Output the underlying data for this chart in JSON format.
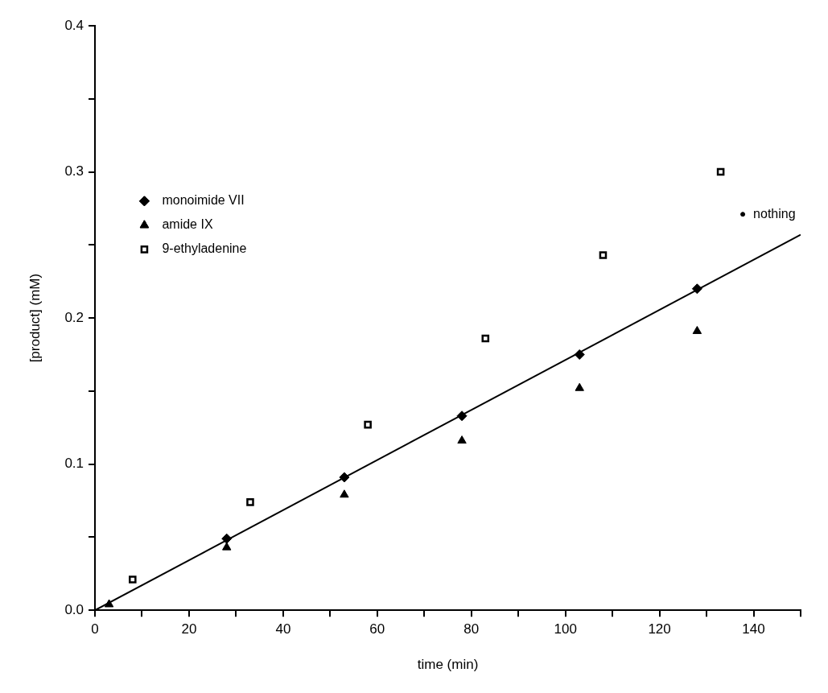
{
  "chart_data": {
    "type": "scatter",
    "xlabel": "time (min)",
    "ylabel": "[product] (mM)",
    "xlim": [
      0,
      150
    ],
    "ylim": [
      0,
      0.4
    ],
    "xticks": [
      0,
      {
        "value": 10,
        "label": null
      },
      20,
      {
        "value": 30,
        "label": null
      },
      40,
      {
        "value": 50,
        "label": null
      },
      60,
      {
        "value": 70,
        "label": null
      },
      80,
      {
        "value": 90,
        "label": null
      },
      100,
      {
        "value": 110,
        "label": null
      },
      120,
      {
        "value": 130,
        "label": null
      },
      140,
      {
        "value": 150,
        "label": null
      }
    ],
    "yticks": [
      {
        "value": 0,
        "label": "0.0"
      },
      {
        "value": 0.05,
        "label": null
      },
      0.1,
      {
        "value": 0.15,
        "label": null
      },
      0.2,
      {
        "value": 0.25,
        "label": null
      },
      0.3,
      {
        "value": 0.35,
        "label": null
      },
      0.4
    ],
    "legend": "left",
    "series": [
      {
        "name": "monoimide VII",
        "color": "#000000",
        "marker": "diamond",
        "x": [
          28,
          53,
          78,
          103,
          128
        ],
        "values": [
          0.049,
          0.091,
          0.133,
          0.175,
          0.22
        ]
      },
      {
        "name": "amide IX",
        "color": "#000000",
        "marker": "triangle",
        "x": [
          3,
          28,
          53,
          78,
          103,
          128
        ],
        "values": [
          0.004,
          0.043,
          0.079,
          0.116,
          0.152,
          0.191
        ]
      },
      {
        "name": "9-ethyladenine",
        "color": "#000000",
        "marker": "square",
        "x": [
          8,
          33,
          58,
          83,
          108,
          133
        ],
        "values": [
          0.021,
          0.074,
          0.127,
          0.186,
          0.243,
          0.3
        ]
      },
      {
        "name": "nothing",
        "color": "#000000",
        "marker": "circle",
        "x": [
          137.7
        ],
        "values": [
          0.271
        ]
      },
      {
        "type": "line",
        "color": "#000000",
        "marker": "none",
        "line_style": "solid",
        "x": [
          0,
          150
        ],
        "values": [
          0,
          0.257
        ]
      }
    ]
  }
}
